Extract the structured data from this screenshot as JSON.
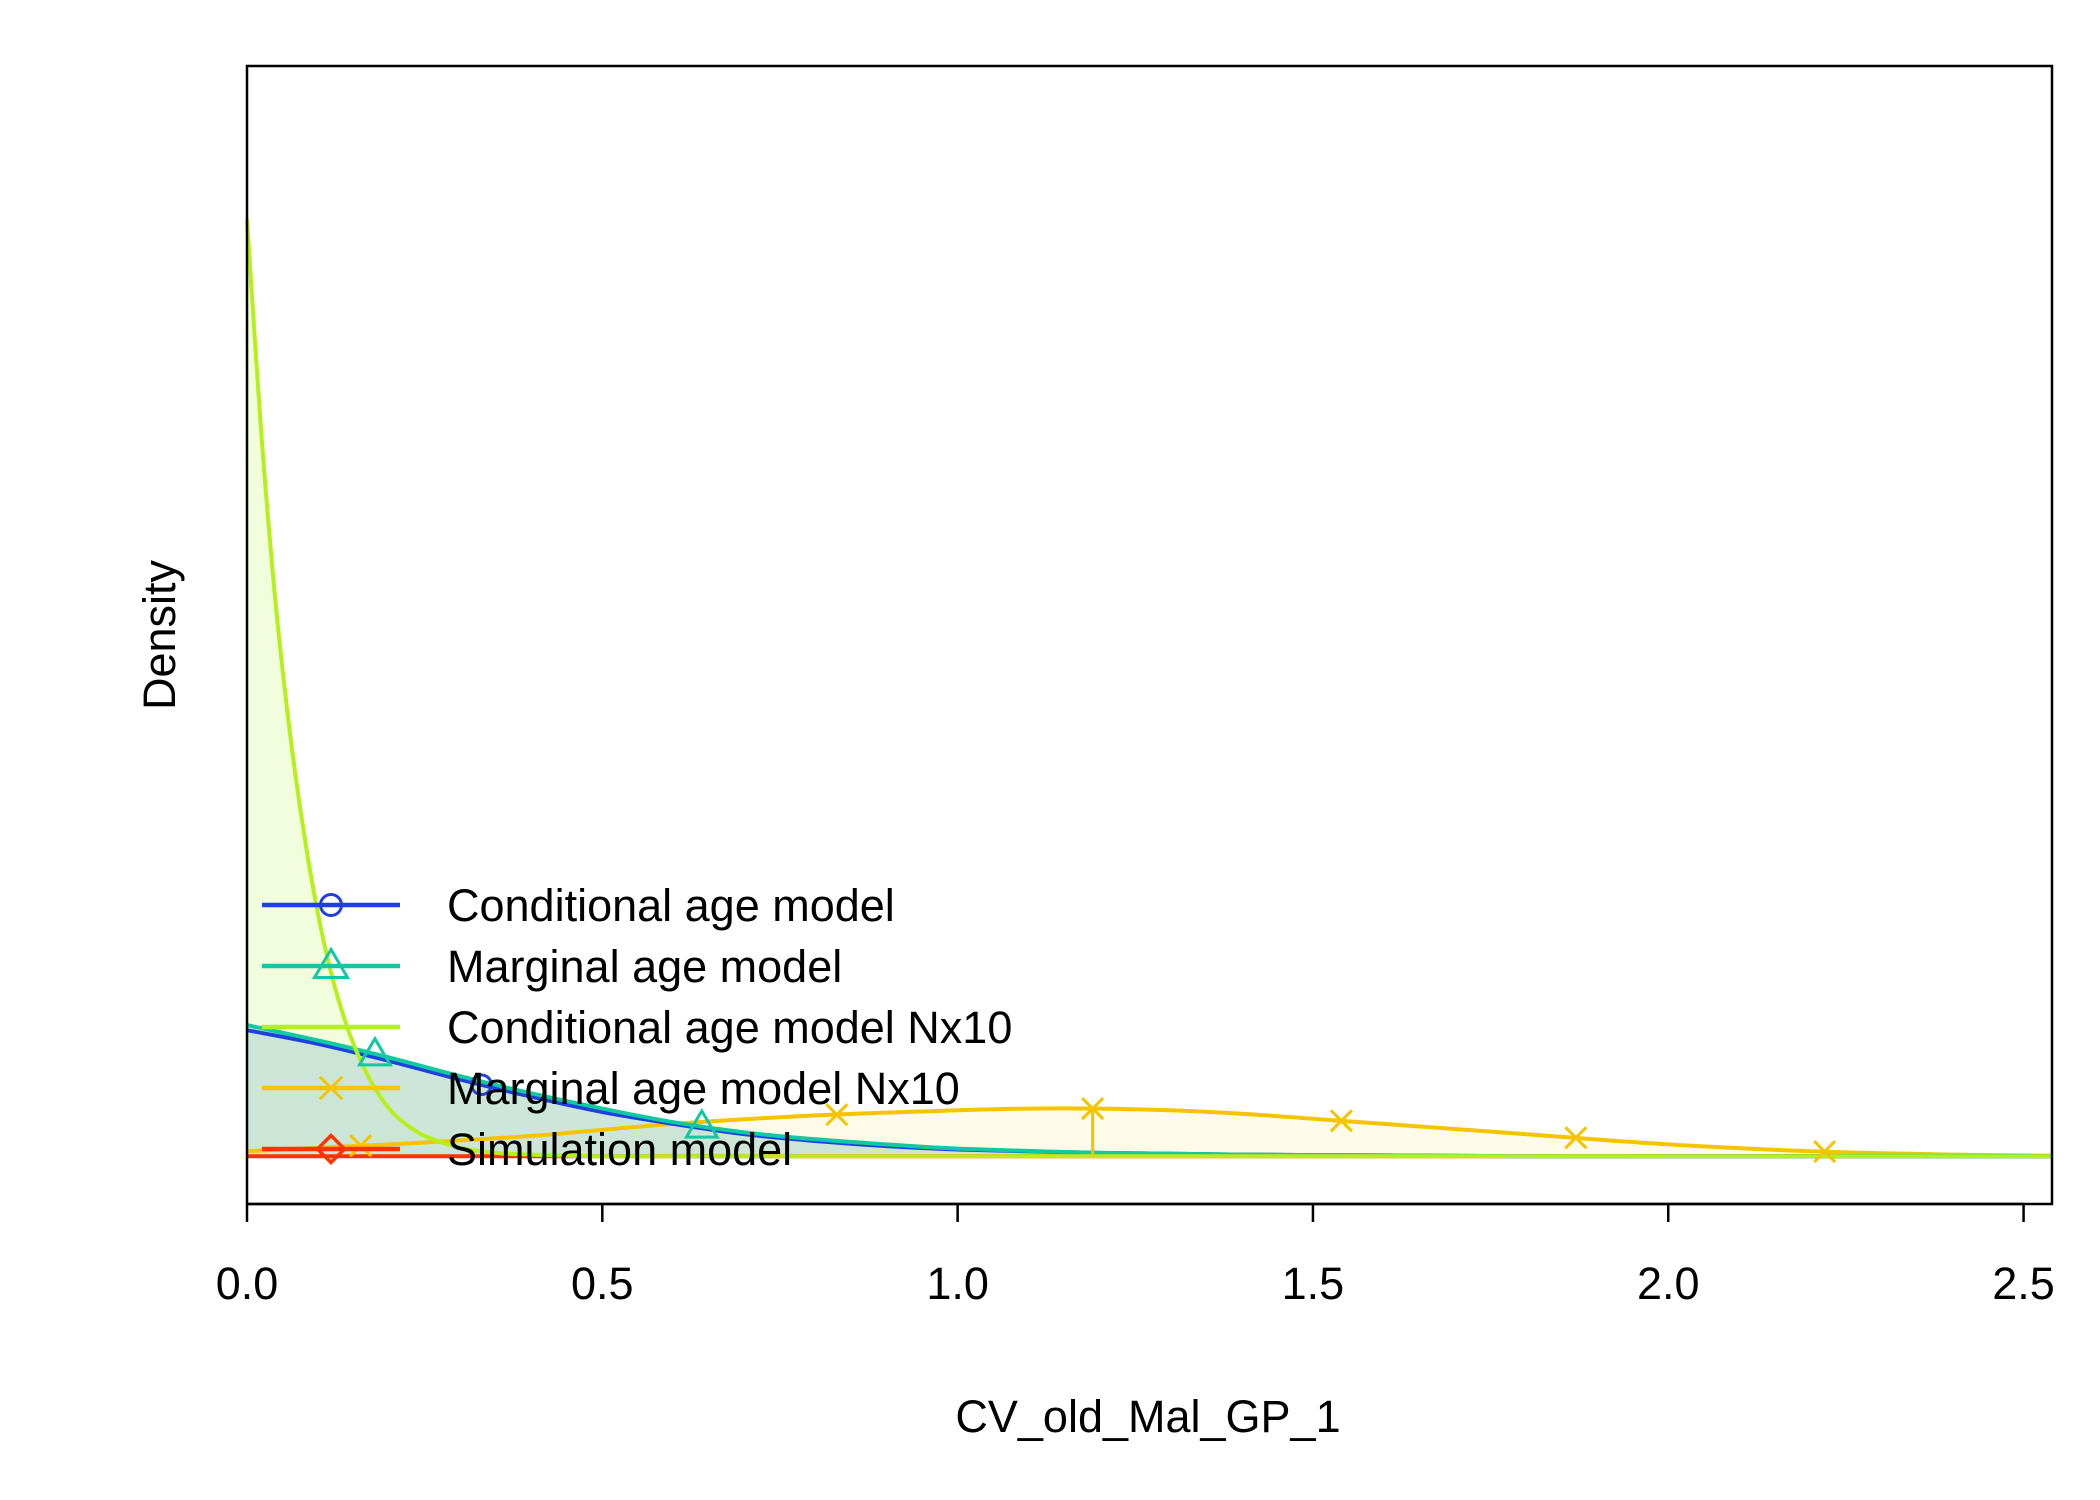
{
  "chart_data": {
    "type": "area",
    "xlabel": "CV_old_Mal_GP_1",
    "ylabel": "Density",
    "xlim": [
      0,
      2.54
    ],
    "ylim": [
      -0.28,
      6.4
    ],
    "x_ticks": [
      "0.0",
      "0.5",
      "1.0",
      "1.5",
      "2.0",
      "2.5"
    ],
    "x_tick_values": [
      0,
      0.5,
      1.0,
      1.5,
      2.0,
      2.5
    ],
    "legend_position": "bottom-left",
    "series": [
      {
        "name": "Conditional age model",
        "color": "#1f3fe0",
        "fill": "#c7dcf3",
        "marker": "circle",
        "x": [
          0,
          0.1,
          0.2,
          0.3,
          0.4,
          0.5,
          0.6,
          0.7,
          0.8,
          0.9,
          1.0,
          1.2,
          1.4,
          1.6,
          1.8,
          2.0,
          2.2,
          2.54
        ],
        "y": [
          0.74,
          0.66,
          0.56,
          0.45,
          0.35,
          0.26,
          0.19,
          0.13,
          0.09,
          0.06,
          0.04,
          0.02,
          0.01,
          0.005,
          0.0,
          0.0,
          0.0,
          0.0
        ],
        "marker_x": [
          0.33
        ]
      },
      {
        "name": "Marginal age model",
        "color": "#10c9a0",
        "fill": "#c8e6cf",
        "marker": "triangle",
        "x": [
          0,
          0.1,
          0.2,
          0.3,
          0.4,
          0.5,
          0.6,
          0.7,
          0.8,
          0.9,
          1.0,
          1.2,
          1.4,
          1.6,
          1.8,
          2.0,
          2.2,
          2.54
        ],
        "y": [
          0.77,
          0.68,
          0.58,
          0.47,
          0.37,
          0.28,
          0.2,
          0.14,
          0.1,
          0.07,
          0.045,
          0.02,
          0.01,
          0.005,
          0.0,
          0.0,
          0.0,
          0.0
        ],
        "marker_x": [
          0.18,
          0.64
        ]
      },
      {
        "name": "Conditional age model Nx10",
        "color": "#b5f01a",
        "fill": "#ecfcd2",
        "marker": "none",
        "x": [
          0,
          0.02,
          0.04,
          0.06,
          0.08,
          0.1,
          0.12,
          0.14,
          0.16,
          0.18,
          0.2,
          0.22,
          0.25,
          0.3,
          0.35,
          0.4,
          0.5,
          0.7,
          1.0,
          1.5,
          2.0,
          2.54
        ],
        "y": [
          5.5,
          4.25,
          3.26,
          2.5,
          1.9,
          1.42,
          1.05,
          0.77,
          0.56,
          0.4,
          0.28,
          0.2,
          0.12,
          0.05,
          0.02,
          0.01,
          0.0,
          0.0,
          0.0,
          0.0,
          0.0,
          0.0
        ],
        "marker_x": []
      },
      {
        "name": "Marginal age model Nx10",
        "color": "#f5c400",
        "fill": "#fefae0",
        "marker": "x",
        "x": [
          0,
          0.2,
          0.4,
          0.6,
          0.8,
          1.0,
          1.1,
          1.2,
          1.3,
          1.4,
          1.5,
          1.6,
          1.8,
          2.0,
          2.2,
          2.4,
          2.54
        ],
        "y": [
          0.03,
          0.07,
          0.12,
          0.19,
          0.24,
          0.27,
          0.28,
          0.28,
          0.27,
          0.25,
          0.22,
          0.19,
          0.13,
          0.07,
          0.03,
          0.01,
          0.003
        ],
        "marker_x": [
          0.16,
          0.83,
          1.19,
          1.54,
          1.87,
          2.22
        ],
        "vline_x": 1.19
      },
      {
        "name": "Simulation model",
        "color": "#ff3300",
        "fill": "none",
        "marker": "diamond",
        "x": [
          0,
          2.54
        ],
        "y": [
          0,
          0
        ],
        "marker_x": []
      }
    ]
  }
}
